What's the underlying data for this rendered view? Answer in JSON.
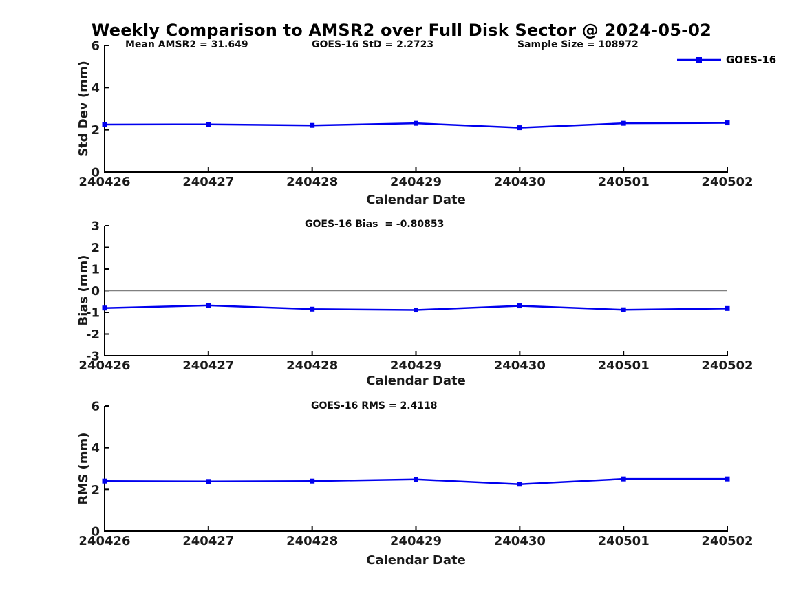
{
  "figure": {
    "title": "Weekly Comparison to AMSR2 over Full Disk Sector @ 2024-05-02"
  },
  "colors": {
    "line": "#0000EE",
    "zero_line": "#808080",
    "axis": "#000000",
    "text": "#1a1a1a"
  },
  "chart_data": [
    {
      "type": "line",
      "ylabel": "Std Dev (mm)",
      "xlabel": "Calendar Date",
      "ylim": [
        0,
        6
      ],
      "yticks": [
        0,
        2,
        4,
        6
      ],
      "grid": false,
      "categories": [
        "240426",
        "240427",
        "240428",
        "240429",
        "240430",
        "240501",
        "240502"
      ],
      "series": [
        {
          "name": "GOES-16",
          "marker": "square",
          "values": [
            2.25,
            2.26,
            2.21,
            2.31,
            2.1,
            2.31,
            2.33
          ]
        }
      ],
      "annotations": [
        "Mean AMSR2 = 31.649",
        "GOES-16 StD = 2.2723",
        "Sample Size = 108972"
      ],
      "legend": {
        "label": "GOES-16",
        "position": "top-right"
      }
    },
    {
      "type": "line",
      "ylabel": "Bias (mm)",
      "xlabel": "Calendar Date",
      "ylim": [
        -3,
        3
      ],
      "yticks": [
        -3,
        -2,
        -1,
        0,
        1,
        2,
        3
      ],
      "grid": false,
      "zero_line": true,
      "categories": [
        "240426",
        "240427",
        "240428",
        "240429",
        "240430",
        "240501",
        "240502"
      ],
      "series": [
        {
          "name": "GOES-16",
          "marker": "square",
          "values": [
            -0.8,
            -0.68,
            -0.85,
            -0.89,
            -0.7,
            -0.88,
            -0.82
          ]
        }
      ],
      "annotations": [
        "GOES-16 Bias  = -0.80853"
      ]
    },
    {
      "type": "line",
      "ylabel": "RMS (mm)",
      "xlabel": "Calendar Date",
      "ylim": [
        0,
        6
      ],
      "yticks": [
        0,
        2,
        4,
        6
      ],
      "grid": false,
      "categories": [
        "240426",
        "240427",
        "240428",
        "240429",
        "240430",
        "240501",
        "240502"
      ],
      "series": [
        {
          "name": "GOES-16",
          "marker": "square",
          "values": [
            2.4,
            2.38,
            2.4,
            2.48,
            2.25,
            2.5,
            2.5
          ]
        }
      ],
      "annotations": [
        "GOES-16 RMS = 2.4118"
      ]
    }
  ]
}
